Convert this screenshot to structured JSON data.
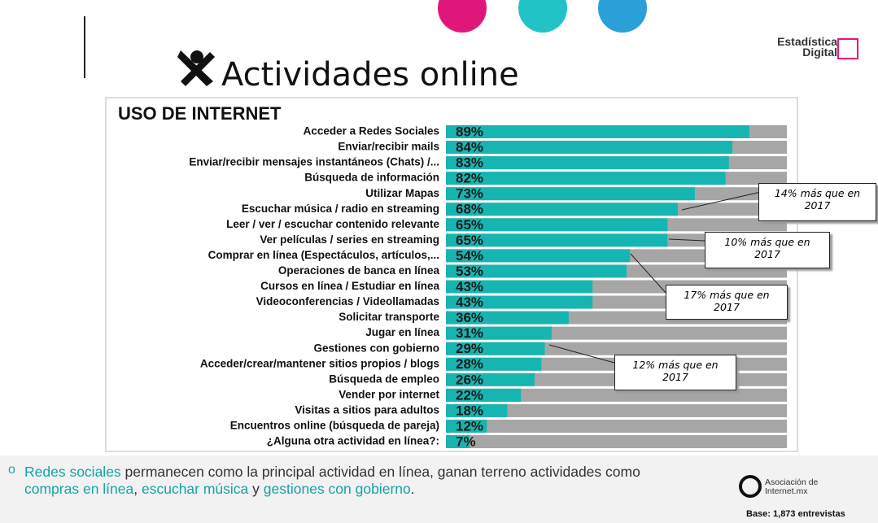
{
  "brand": {
    "line1": "Estadística",
    "line2": "Digital"
  },
  "page_title": "Actividades online",
  "chart_data": {
    "type": "bar",
    "orientation": "horizontal",
    "title": "USO DE INTERNET",
    "categories": [
      "Acceder a Redes Sociales",
      "Enviar/recibir mails",
      "Enviar/recibir mensajes instantáneos (Chats) /...",
      "Búsqueda de información",
      "Utilizar Mapas",
      "Escuchar música / radio en streaming",
      "Leer / ver / escuchar contenido relevante",
      "Ver películas / series en streaming",
      "Comprar en línea (Espectáculos, artículos,...",
      "Operaciones de banca en línea",
      "Cursos en línea / Estudiar en línea",
      "Videoconferencias / Videollamadas",
      "Solicitar transporte",
      "Jugar en línea",
      "Gestiones con gobierno",
      "Acceder/crear/mantener sitios propios / blogs",
      "Búsqueda de empleo",
      "Vender por internet",
      "Visitas a sitios para adultos",
      "Encuentros online (búsqueda de pareja)",
      "¿Alguna otra actividad en línea?:"
    ],
    "values": [
      89,
      84,
      83,
      82,
      73,
      68,
      65,
      65,
      54,
      53,
      43,
      43,
      36,
      31,
      29,
      28,
      26,
      22,
      18,
      12,
      7
    ],
    "value_labels": [
      "89%",
      "84%",
      "83%",
      "82%",
      "73%",
      "68%",
      "65%",
      "65%",
      "54%",
      "53%",
      "43%",
      "43%",
      "36%",
      "31%",
      "29%",
      "28%",
      "26%",
      "22%",
      "18%",
      "12%",
      "7%"
    ],
    "color": "#17b5b1",
    "track_color": "#a6a6a6",
    "xlim": [
      0,
      100
    ],
    "annotations": [
      "14% más que en 2017",
      "10% más que en 2017",
      "17% más que en 2017",
      "12% más que en 2017"
    ]
  },
  "summary": [
    {
      "text": "Redes sociales",
      "highlight": true
    },
    {
      "text": " permanecen como la principal actividad en línea, ganan terreno actividades como ",
      "highlight": false
    },
    {
      "text": "compras en línea",
      "highlight": true
    },
    {
      "text": ", ",
      "highlight": false
    },
    {
      "text": "escuchar música",
      "highlight": true
    },
    {
      "text": " y ",
      "highlight": false
    },
    {
      "text": "gestiones con gobierno",
      "highlight": true
    },
    {
      "text": ".",
      "highlight": false
    }
  ],
  "association": {
    "line1": "Asociación de",
    "line2": "Internet.mx"
  },
  "base": "Base: 1,873 entrevistas"
}
